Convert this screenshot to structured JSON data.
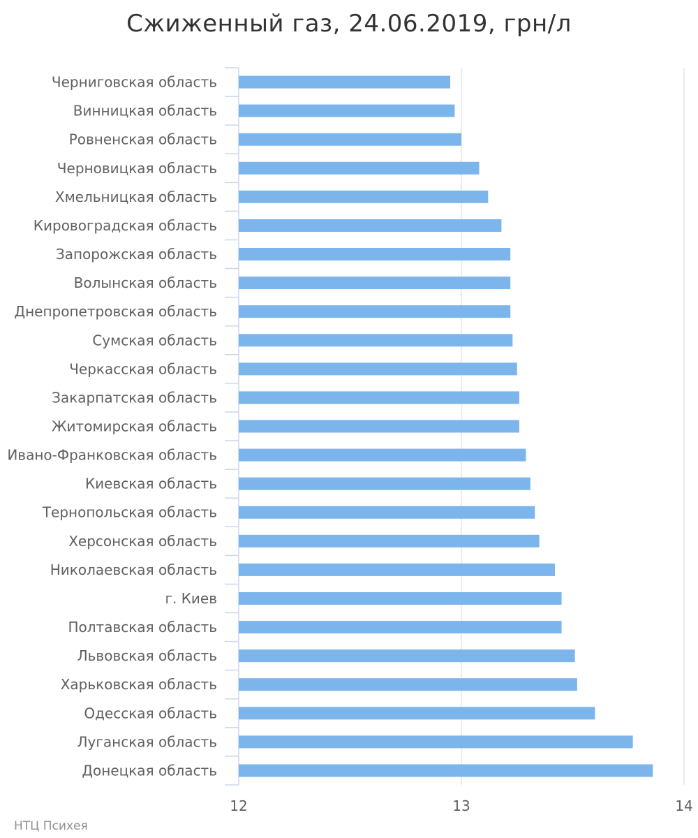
{
  "chart_data": {
    "type": "bar",
    "orientation": "horizontal",
    "title": "Сжиженный газ, 24.06.2019, грн/л",
    "xlabel": "",
    "ylabel": "",
    "xlim": [
      12,
      14
    ],
    "x_ticks": [
      "12",
      "13",
      "14"
    ],
    "grid": true,
    "bar_color": "#7cb5ec",
    "categories": [
      "Черниговская область",
      "Винницкая область",
      "Ровненская область",
      "Черновицкая область",
      "Хмельницкая область",
      "Кировоградская область",
      "Запорожская область",
      "Волынская область",
      "Днепропетровская область",
      "Сумская область",
      "Черкасская область",
      "Закарпатская область",
      "Житомирская область",
      "Ивано-Франковская область",
      "Киевская область",
      "Тернопольская область",
      "Херсонская область",
      "Николаевская область",
      "г. Киев",
      "Полтавская область",
      "Львовская область",
      "Харьковская область",
      "Одесская область",
      "Луганская область",
      "Донецкая область"
    ],
    "values": [
      12.95,
      12.97,
      13.0,
      13.08,
      13.12,
      13.18,
      13.22,
      13.22,
      13.22,
      13.23,
      13.25,
      13.26,
      13.26,
      13.29,
      13.31,
      13.33,
      13.35,
      13.42,
      13.45,
      13.45,
      13.51,
      13.52,
      13.6,
      13.77,
      13.86
    ]
  },
  "credit": "НТЦ Психея"
}
